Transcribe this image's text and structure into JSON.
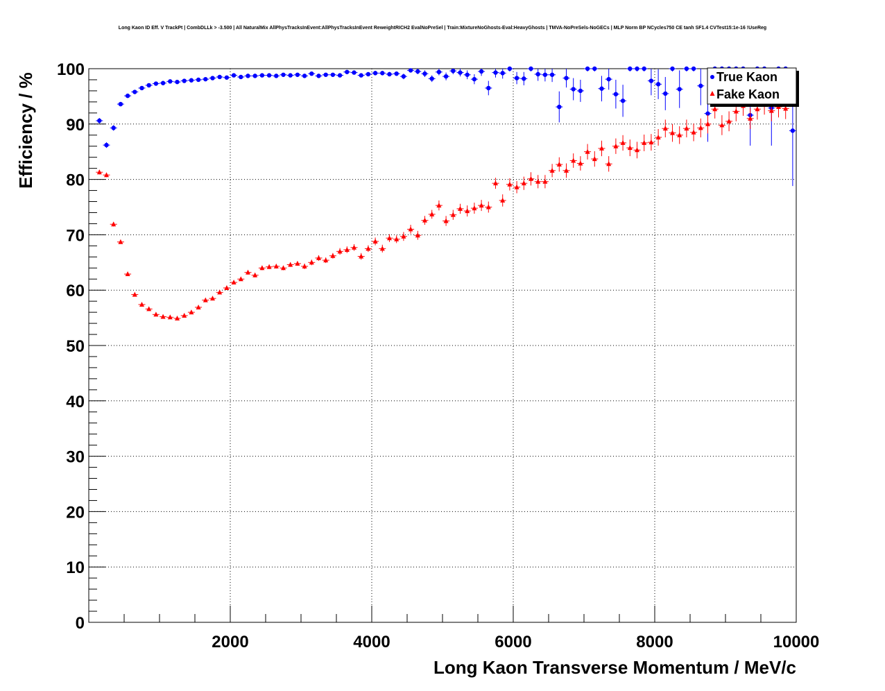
{
  "chart_data": {
    "type": "scatter",
    "title": "Long Kaon ID Eff. V TrackPt | CombDLLk > -3.500 | All NaturalMix AllPhysTracksInEvent:AllPhysTracksInEvent ReweightRICH2 EvalNoPreSel | Train:MixtureNoGhosts-Eval:HeavyGhosts | TMVA-NoPreSels-NoGECs | MLP Norm BP NCycles750 CE tanh SF1.4 CVTest15:1e-16 !UseReg",
    "xlabel": "Long Kaon Transverse Momentum / MeV/c",
    "ylabel": "Efficiency / %",
    "xlim": [
      0,
      10000
    ],
    "ylim": [
      0,
      100
    ],
    "x_ticks": [
      2000,
      4000,
      6000,
      8000,
      10000
    ],
    "y_ticks": [
      0,
      10,
      20,
      30,
      40,
      50,
      60,
      70,
      80,
      90,
      100
    ],
    "grid": true,
    "legend_position": "top-right",
    "series": [
      {
        "name": "True Kaon",
        "color": "#0000ff",
        "marker": "circle",
        "x": [
          150,
          250,
          350,
          450,
          550,
          650,
          750,
          850,
          950,
          1050,
          1150,
          1250,
          1350,
          1450,
          1550,
          1650,
          1750,
          1850,
          1950,
          2050,
          2150,
          2250,
          2350,
          2450,
          2550,
          2650,
          2750,
          2850,
          2950,
          3050,
          3150,
          3250,
          3350,
          3450,
          3550,
          3650,
          3750,
          3850,
          3950,
          4050,
          4150,
          4250,
          4350,
          4450,
          4550,
          4650,
          4750,
          4850,
          4950,
          5050,
          5150,
          5250,
          5350,
          5450,
          5550,
          5650,
          5750,
          5850,
          5950,
          6050,
          6150,
          6250,
          6350,
          6450,
          6550,
          6650,
          6750,
          6850,
          6950,
          7050,
          7150,
          7250,
          7350,
          7450,
          7550,
          7650,
          7750,
          7850,
          7950,
          8050,
          8150,
          8250,
          8350,
          8450,
          8550,
          8650,
          8750,
          8850,
          8950,
          9050,
          9150,
          9250,
          9350,
          9450,
          9550,
          9650,
          9750,
          9850,
          9950
        ],
        "y": [
          90.6,
          86.2,
          89.3,
          93.6,
          95.1,
          95.8,
          96.5,
          97.0,
          97.3,
          97.4,
          97.7,
          97.6,
          97.8,
          97.9,
          98.0,
          98.1,
          98.3,
          98.5,
          98.4,
          98.8,
          98.5,
          98.7,
          98.7,
          98.8,
          98.8,
          98.7,
          98.9,
          98.8,
          98.9,
          98.7,
          99.1,
          98.7,
          98.9,
          98.9,
          98.8,
          99.4,
          99.3,
          98.8,
          99.0,
          99.2,
          99.2,
          99.0,
          99.1,
          98.6,
          99.7,
          99.5,
          99.1,
          98.2,
          99.4,
          98.6,
          99.6,
          99.3,
          98.9,
          98.1,
          99.5,
          96.5,
          99.3,
          99.2,
          100.0,
          98.3,
          98.2,
          100.0,
          99.0,
          98.9,
          98.9,
          93.1,
          98.3,
          96.3,
          96.0,
          100.0,
          100.0,
          96.4,
          98.1,
          95.4,
          94.2,
          100.0,
          100.0,
          100.0,
          97.8,
          97.2,
          95.5,
          100.0,
          96.3,
          100.0,
          100.0,
          96.9,
          91.9,
          100.0,
          100.0,
          100.0,
          100.0,
          100.0,
          91.6,
          100.0,
          100.0,
          92.9,
          100.0,
          100.0,
          88.8
        ],
        "yerr": [
          0.5,
          0.5,
          0.5,
          0.4,
          0.4,
          0.3,
          0.3,
          0.3,
          0.3,
          0.3,
          0.3,
          0.2,
          0.2,
          0.2,
          0.2,
          0.2,
          0.2,
          0.2,
          0.2,
          0.2,
          0.2,
          0.2,
          0.2,
          0.2,
          0.2,
          0.2,
          0.2,
          0.2,
          0.2,
          0.2,
          0.2,
          0.3,
          0.3,
          0.3,
          0.3,
          0.3,
          0.3,
          0.3,
          0.3,
          0.4,
          0.4,
          0.4,
          0.4,
          0.5,
          0.4,
          0.5,
          0.6,
          0.6,
          0.6,
          0.7,
          0.6,
          0.7,
          0.8,
          0.9,
          0.8,
          1.3,
          0.9,
          1.0,
          0.5,
          1.1,
          1.2,
          0.5,
          1.2,
          1.2,
          1.3,
          2.8,
          1.7,
          2.0,
          2.0,
          0.5,
          0.5,
          2.3,
          1.9,
          2.6,
          2.9,
          0.5,
          0.5,
          0.5,
          2.6,
          2.7,
          3.0,
          0.5,
          3.4,
          0.5,
          0.5,
          3.5,
          5.1,
          0.5,
          0.5,
          0.5,
          0.5,
          0.5,
          5.5,
          0.5,
          0.5,
          6.8,
          0.5,
          0.5,
          10.0
        ]
      },
      {
        "name": "Fake Kaon",
        "color": "#ff0000",
        "marker": "triangle",
        "x": [
          150,
          250,
          350,
          450,
          550,
          650,
          750,
          850,
          950,
          1050,
          1150,
          1250,
          1350,
          1450,
          1550,
          1650,
          1750,
          1850,
          1950,
          2050,
          2150,
          2250,
          2350,
          2450,
          2550,
          2650,
          2750,
          2850,
          2950,
          3050,
          3150,
          3250,
          3350,
          3450,
          3550,
          3650,
          3750,
          3850,
          3950,
          4050,
          4150,
          4250,
          4350,
          4450,
          4550,
          4650,
          4750,
          4850,
          4950,
          5050,
          5150,
          5250,
          5350,
          5450,
          5550,
          5650,
          5750,
          5850,
          5950,
          6050,
          6150,
          6250,
          6350,
          6450,
          6550,
          6650,
          6750,
          6850,
          6950,
          7050,
          7150,
          7250,
          7350,
          7450,
          7550,
          7650,
          7750,
          7850,
          7950,
          8050,
          8150,
          8250,
          8350,
          8450,
          8550,
          8650,
          8750,
          8850,
          8950,
          9050,
          9150,
          9250,
          9350,
          9450,
          9550,
          9650,
          9750,
          9850
        ],
        "y": [
          81.3,
          80.8,
          71.9,
          68.7,
          62.9,
          59.2,
          57.4,
          56.6,
          55.6,
          55.2,
          55.1,
          54.9,
          55.4,
          56.0,
          56.9,
          58.2,
          58.5,
          59.6,
          60.4,
          61.4,
          62.0,
          63.2,
          62.7,
          64.0,
          64.2,
          64.3,
          64.0,
          64.6,
          64.8,
          64.3,
          65.0,
          65.8,
          65.4,
          66.2,
          67.0,
          67.3,
          67.7,
          66.1,
          67.5,
          68.8,
          67.5,
          69.4,
          69.2,
          69.7,
          71.0,
          69.9,
          72.6,
          73.7,
          75.3,
          72.5,
          73.6,
          74.7,
          74.3,
          74.8,
          75.3,
          75.0,
          79.3,
          76.2,
          79.1,
          78.6,
          79.3,
          80.1,
          79.6,
          79.6,
          81.6,
          82.7,
          81.6,
          83.4,
          82.9,
          85.0,
          83.7,
          85.6,
          82.8,
          86.0,
          86.6,
          85.7,
          85.3,
          86.6,
          86.7,
          87.6,
          89.2,
          88.4,
          88.0,
          89.2,
          88.5,
          89.3,
          90.0,
          92.7,
          89.8,
          90.5,
          92.3,
          93.3,
          91.0,
          92.7,
          93.6,
          92.4,
          93.1,
          92.8
        ],
        "yerr": [
          0.4,
          0.4,
          0.4,
          0.3,
          0.3,
          0.3,
          0.3,
          0.3,
          0.3,
          0.3,
          0.3,
          0.3,
          0.3,
          0.3,
          0.3,
          0.3,
          0.3,
          0.3,
          0.3,
          0.3,
          0.3,
          0.4,
          0.4,
          0.4,
          0.4,
          0.4,
          0.4,
          0.4,
          0.4,
          0.5,
          0.5,
          0.5,
          0.5,
          0.5,
          0.6,
          0.6,
          0.6,
          0.6,
          0.6,
          0.7,
          0.7,
          0.7,
          0.7,
          0.8,
          0.8,
          0.8,
          0.8,
          0.8,
          0.9,
          0.9,
          0.9,
          0.9,
          1.0,
          1.0,
          1.0,
          1.0,
          1.0,
          1.1,
          1.1,
          1.1,
          1.2,
          1.2,
          1.2,
          1.2,
          1.2,
          1.3,
          1.3,
          1.3,
          1.3,
          1.4,
          1.4,
          1.4,
          1.4,
          1.4,
          1.4,
          1.5,
          1.5,
          1.5,
          1.5,
          1.5,
          1.6,
          1.6,
          1.6,
          1.6,
          1.6,
          1.7,
          1.7,
          1.7,
          1.8,
          1.8,
          1.8,
          1.8,
          1.9,
          1.9,
          1.9,
          1.9,
          1.9,
          1.9
        ]
      }
    ]
  }
}
